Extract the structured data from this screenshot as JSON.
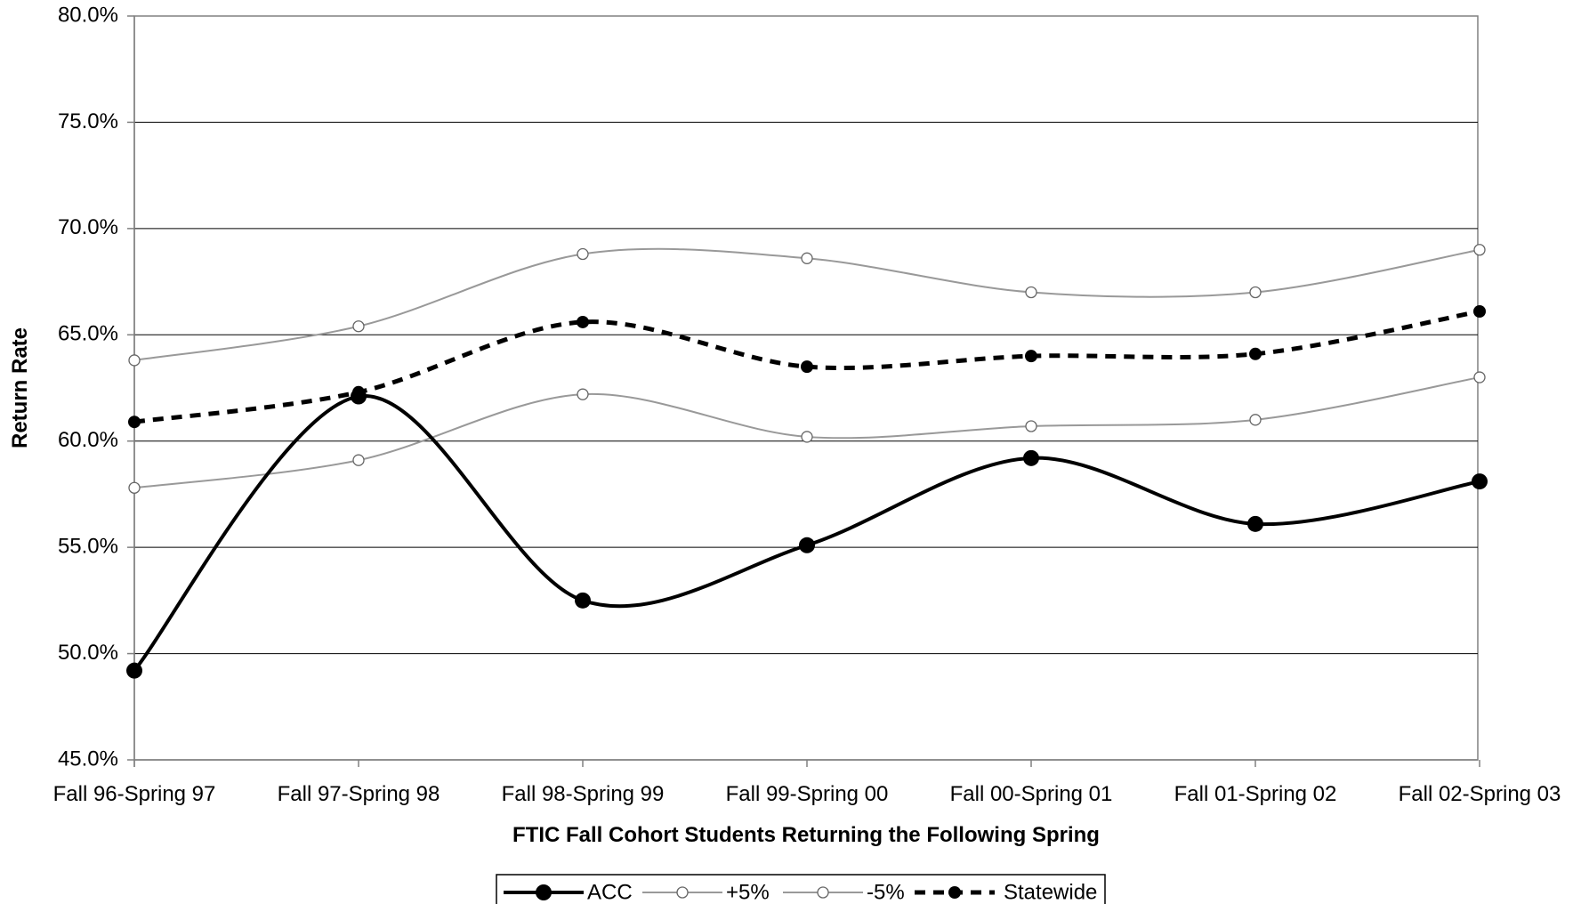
{
  "chart_data": {
    "type": "line",
    "title": "",
    "xlabel": "FTIC Fall Cohort Students Returning the Following Spring",
    "ylabel": "Return Rate",
    "ylim": [
      45.0,
      80.0
    ],
    "y_ticks": [
      "45.0%",
      "50.0%",
      "55.0%",
      "60.0%",
      "65.0%",
      "70.0%",
      "75.0%",
      "80.0%"
    ],
    "y_tick_values": [
      45,
      50,
      55,
      60,
      65,
      70,
      75,
      80
    ],
    "categories": [
      "Fall 96-Spring 97",
      "Fall 97-Spring 98",
      "Fall 98-Spring 99",
      "Fall 99-Spring 00",
      "Fall 00-Spring 01",
      "Fall 01-Spring 02",
      "Fall 02-Spring 03"
    ],
    "grid": true,
    "legend_position": "bottom",
    "series": [
      {
        "name": "ACC",
        "values": [
          49.2,
          62.1,
          52.5,
          55.1,
          59.2,
          56.1,
          58.1
        ],
        "color": "#000000",
        "style": "solid-thick",
        "marker": "filled-circle"
      },
      {
        "name": "+5%",
        "values": [
          63.8,
          65.4,
          68.8,
          68.6,
          67.0,
          67.0,
          69.0
        ],
        "color": "#999999",
        "style": "solid-thin",
        "marker": "open-circle"
      },
      {
        "name": "-5%",
        "values": [
          57.8,
          59.1,
          62.2,
          60.2,
          60.7,
          61.0,
          63.0
        ],
        "color": "#999999",
        "style": "solid-thin",
        "marker": "open-circle"
      },
      {
        "name": "Statewide",
        "values": [
          60.9,
          62.3,
          65.6,
          63.5,
          64.0,
          64.1,
          66.1
        ],
        "color": "#000000",
        "style": "dashed",
        "marker": "filled-circle-small"
      }
    ]
  }
}
